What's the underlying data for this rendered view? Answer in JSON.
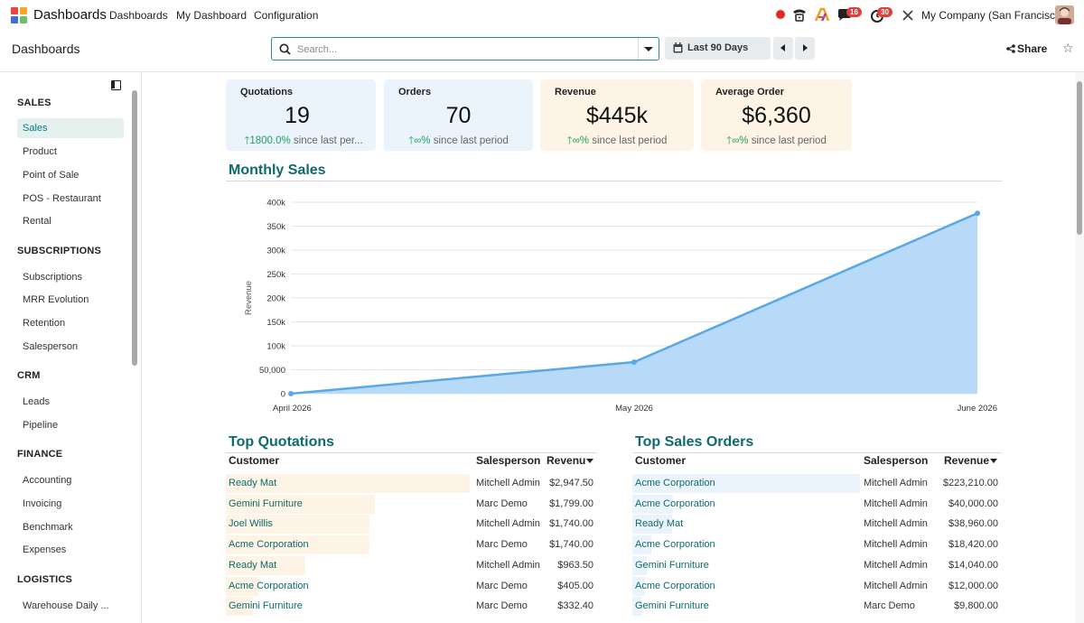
{
  "navbar": {
    "brand": "Dashboards",
    "menu": [
      "Dashboards",
      "My Dashboard",
      "Configuration"
    ],
    "badges": {
      "messages": "16",
      "activities": "30"
    },
    "company": "My Company (San Francisco)"
  },
  "control_panel": {
    "breadcrumb": "Dashboards",
    "search_placeholder": "Search...",
    "date_filter": "Last 90 Days",
    "share_label": "Share"
  },
  "sidebar": {
    "sections": [
      {
        "title": "SALES",
        "items": [
          "Sales",
          "Product",
          "Point of Sale",
          "POS - Restaurant",
          "Rental"
        ]
      },
      {
        "title": "SUBSCRIPTIONS",
        "items": [
          "Subscriptions",
          "MRR Evolution",
          "Retention",
          "Salesperson"
        ]
      },
      {
        "title": "CRM",
        "items": [
          "Leads",
          "Pipeline"
        ]
      },
      {
        "title": "FINANCE",
        "items": [
          "Accounting",
          "Invoicing",
          "Benchmark",
          "Expenses"
        ]
      },
      {
        "title": "LOGISTICS",
        "items": [
          "Warehouse Daily ..."
        ]
      }
    ],
    "active_item": "Sales"
  },
  "kpis": [
    {
      "title": "Quotations",
      "value": "19",
      "change": "1800.0%",
      "suffix": "since last per...",
      "color": "#ebf3fc"
    },
    {
      "title": "Orders",
      "value": "70",
      "change": "∞%",
      "suffix": "since last period",
      "color": "#ebf3fc"
    },
    {
      "title": "Revenue",
      "value": "$445k",
      "change": "∞%",
      "suffix": "since last period",
      "color": "#fdf4e6"
    },
    {
      "title": "Average Order",
      "value": "$6,360",
      "change": "∞%",
      "suffix": "since last period",
      "color": "#fdf4e6"
    }
  ],
  "monthly_sales": {
    "title": "Monthly Sales"
  },
  "chart_data": {
    "type": "area",
    "title": "Monthly Sales",
    "ylabel": "Revenue",
    "xlabel": "",
    "categories": [
      "April 2026",
      "May 2026",
      "June 2026"
    ],
    "series": [
      {
        "name": "Revenue",
        "values": [
          0,
          66000,
          377000
        ]
      }
    ],
    "ylim": [
      0,
      400000
    ],
    "yticks": [
      0,
      50000,
      100000,
      150000,
      200000,
      250000,
      300000,
      350000,
      400000
    ],
    "ytick_labels": [
      "0",
      "50,000",
      "100k",
      "150k",
      "200k",
      "250k",
      "300k",
      "350k",
      "400k"
    ],
    "grid": true,
    "color": "#5aa8e6",
    "fill": "#b6daf7"
  },
  "top_quotations": {
    "title": "Top Quotations",
    "headers": {
      "customer": "Customer",
      "salesperson": "Salesperson",
      "revenue": "Revenu"
    },
    "bar_color": "#fdf4e6",
    "rows": [
      {
        "customer": "Ready Mat",
        "salesperson": "Mitchell Admin",
        "revenue": "$2,947.50",
        "amount": 2947.5
      },
      {
        "customer": "Gemini Furniture",
        "salesperson": "Marc Demo",
        "revenue": "$1,799.00",
        "amount": 1799.0
      },
      {
        "customer": "Joel Willis",
        "salesperson": "Mitchell Admin",
        "revenue": "$1,740.00",
        "amount": 1740.0
      },
      {
        "customer": "Acme Corporation",
        "salesperson": "Marc Demo",
        "revenue": "$1,740.00",
        "amount": 1740.0
      },
      {
        "customer": "Ready Mat",
        "salesperson": "Mitchell Admin",
        "revenue": "$963.50",
        "amount": 963.5
      },
      {
        "customer": "Acme Corporation",
        "salesperson": "Marc Demo",
        "revenue": "$405.00",
        "amount": 405.0
      },
      {
        "customer": "Gemini Furniture",
        "salesperson": "Marc Demo",
        "revenue": "$332.40",
        "amount": 332.4
      }
    ]
  },
  "top_sales_orders": {
    "title": "Top Sales Orders",
    "headers": {
      "customer": "Customer",
      "salesperson": "Salesperson",
      "revenue": "Revenue"
    },
    "bar_color": "#ebf3fc",
    "rows": [
      {
        "customer": "Acme Corporation",
        "salesperson": "Mitchell Admin",
        "revenue": "$223,210.00",
        "amount": 223210
      },
      {
        "customer": "Acme Corporation",
        "salesperson": "Mitchell Admin",
        "revenue": "$40,000.00",
        "amount": 40000
      },
      {
        "customer": "Ready Mat",
        "salesperson": "Mitchell Admin",
        "revenue": "$38,960.00",
        "amount": 38960
      },
      {
        "customer": "Acme Corporation",
        "salesperson": "Mitchell Admin",
        "revenue": "$18,420.00",
        "amount": 18420
      },
      {
        "customer": "Gemini Furniture",
        "salesperson": "Mitchell Admin",
        "revenue": "$14,040.00",
        "amount": 14040
      },
      {
        "customer": "Acme Corporation",
        "salesperson": "Mitchell Admin",
        "revenue": "$12,000.00",
        "amount": 12000
      },
      {
        "customer": "Gemini Furniture",
        "salesperson": "Marc Demo",
        "revenue": "$9,800.00",
        "amount": 9800
      }
    ]
  }
}
